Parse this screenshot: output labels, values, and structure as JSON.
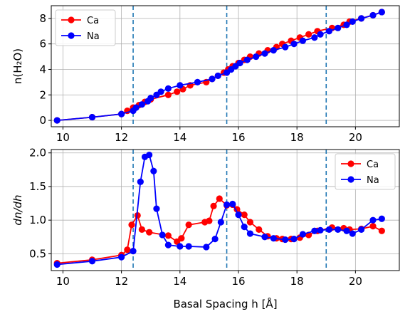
{
  "chart_data": [
    {
      "type": "line",
      "title": "",
      "xlabel": "",
      "ylabel": "n(H₂O)",
      "xlim": [
        9.6,
        21.5
      ],
      "ylim": [
        -0.5,
        9.0
      ],
      "xticks": [
        10,
        12,
        14,
        16,
        18,
        20
      ],
      "yticks": [
        0,
        2,
        4,
        6,
        8
      ],
      "grid": true,
      "legend_position": "top-left",
      "vlines": [
        12.4,
        15.6,
        19.0
      ],
      "series": [
        {
          "name": "Ca",
          "color": "#ff0000",
          "points": [
            [
              9.8,
              0.0
            ],
            [
              11.0,
              0.25
            ],
            [
              12.0,
              0.5
            ],
            [
              12.2,
              0.75
            ],
            [
              12.4,
              1.0
            ],
            [
              12.6,
              1.2
            ],
            [
              12.8,
              1.45
            ],
            [
              13.0,
              1.65
            ],
            [
              13.6,
              2.0
            ],
            [
              13.9,
              2.25
            ],
            [
              14.1,
              2.45
            ],
            [
              14.35,
              2.75
            ],
            [
              14.9,
              3.0
            ],
            [
              15.1,
              3.25
            ],
            [
              15.3,
              3.5
            ],
            [
              15.5,
              3.75
            ],
            [
              15.65,
              4.0
            ],
            [
              15.8,
              4.25
            ],
            [
              16.0,
              4.5
            ],
            [
              16.2,
              4.75
            ],
            [
              16.4,
              5.0
            ],
            [
              16.7,
              5.25
            ],
            [
              17.0,
              5.5
            ],
            [
              17.3,
              5.75
            ],
            [
              17.5,
              6.0
            ],
            [
              17.8,
              6.25
            ],
            [
              18.1,
              6.5
            ],
            [
              18.4,
              6.75
            ],
            [
              18.7,
              7.0
            ],
            [
              19.2,
              7.25
            ],
            [
              19.6,
              7.5
            ],
            [
              19.8,
              7.75
            ],
            [
              20.2,
              8.0
            ],
            [
              20.6,
              8.25
            ],
            [
              20.9,
              8.5
            ]
          ]
        },
        {
          "name": "Na",
          "color": "#0000ff",
          "points": [
            [
              9.8,
              0.0
            ],
            [
              11.0,
              0.25
            ],
            [
              12.0,
              0.5
            ],
            [
              12.4,
              0.75
            ],
            [
              12.5,
              1.0
            ],
            [
              12.7,
              1.25
            ],
            [
              12.9,
              1.5
            ],
            [
              13.0,
              1.75
            ],
            [
              13.2,
              2.0
            ],
            [
              13.35,
              2.25
            ],
            [
              13.6,
              2.5
            ],
            [
              14.0,
              2.75
            ],
            [
              14.6,
              3.0
            ],
            [
              15.1,
              3.25
            ],
            [
              15.3,
              3.5
            ],
            [
              15.6,
              3.75
            ],
            [
              15.75,
              4.0
            ],
            [
              15.9,
              4.25
            ],
            [
              16.05,
              4.5
            ],
            [
              16.3,
              4.75
            ],
            [
              16.6,
              5.0
            ],
            [
              16.9,
              5.25
            ],
            [
              17.2,
              5.5
            ],
            [
              17.6,
              5.75
            ],
            [
              17.9,
              6.0
            ],
            [
              18.2,
              6.25
            ],
            [
              18.6,
              6.5
            ],
            [
              18.8,
              6.75
            ],
            [
              19.1,
              7.0
            ],
            [
              19.4,
              7.25
            ],
            [
              19.7,
              7.5
            ],
            [
              19.9,
              7.75
            ],
            [
              20.2,
              8.0
            ],
            [
              20.6,
              8.25
            ],
            [
              20.9,
              8.5
            ]
          ]
        }
      ]
    },
    {
      "type": "line",
      "title": "",
      "xlabel": "Basal Spacing h [Å]",
      "ylabel": "dn/dh",
      "xlim": [
        9.6,
        21.5
      ],
      "ylim": [
        0.25,
        2.05
      ],
      "xticks": [
        10,
        12,
        14,
        16,
        18,
        20
      ],
      "yticks": [
        0.5,
        1.0,
        1.5,
        2.0
      ],
      "ytick_labels": [
        "0.5",
        "1.0",
        "1.5",
        "2.0"
      ],
      "grid": true,
      "legend_position": "top-right",
      "vlines": [
        12.4,
        15.6,
        19.0
      ],
      "series": [
        {
          "name": "Ca",
          "color": "#ff0000",
          "points": [
            [
              9.8,
              0.36
            ],
            [
              11.0,
              0.41
            ],
            [
              12.0,
              0.48
            ],
            [
              12.2,
              0.56
            ],
            [
              12.35,
              0.93
            ],
            [
              12.55,
              1.07
            ],
            [
              12.7,
              0.86
            ],
            [
              12.95,
              0.82
            ],
            [
              13.6,
              0.77
            ],
            [
              13.9,
              0.68
            ],
            [
              14.05,
              0.73
            ],
            [
              14.3,
              0.93
            ],
            [
              14.85,
              0.97
            ],
            [
              15.0,
              0.99
            ],
            [
              15.15,
              1.21
            ],
            [
              15.35,
              1.32
            ],
            [
              15.6,
              1.22
            ],
            [
              15.8,
              1.23
            ],
            [
              15.95,
              1.16
            ],
            [
              16.2,
              1.08
            ],
            [
              16.4,
              0.97
            ],
            [
              16.7,
              0.86
            ],
            [
              17.0,
              0.76
            ],
            [
              17.3,
              0.73
            ],
            [
              17.5,
              0.72
            ],
            [
              17.8,
              0.72
            ],
            [
              18.1,
              0.74
            ],
            [
              18.4,
              0.78
            ],
            [
              18.7,
              0.84
            ],
            [
              19.2,
              0.89
            ],
            [
              19.6,
              0.88
            ],
            [
              19.8,
              0.86
            ],
            [
              20.2,
              0.87
            ],
            [
              20.6,
              0.91
            ],
            [
              20.9,
              0.84
            ]
          ]
        },
        {
          "name": "Na",
          "color": "#0000ff",
          "points": [
            [
              9.8,
              0.34
            ],
            [
              11.0,
              0.39
            ],
            [
              12.0,
              0.45
            ],
            [
              12.4,
              0.54
            ],
            [
              12.65,
              1.57
            ],
            [
              12.8,
              1.94
            ],
            [
              12.95,
              1.97
            ],
            [
              13.1,
              1.73
            ],
            [
              13.2,
              1.17
            ],
            [
              13.4,
              0.78
            ],
            [
              13.6,
              0.63
            ],
            [
              14.0,
              0.61
            ],
            [
              14.3,
              0.61
            ],
            [
              14.9,
              0.6
            ],
            [
              15.2,
              0.72
            ],
            [
              15.4,
              0.97
            ],
            [
              15.6,
              1.23
            ],
            [
              15.8,
              1.24
            ],
            [
              16.0,
              1.08
            ],
            [
              16.2,
              0.9
            ],
            [
              16.4,
              0.8
            ],
            [
              16.9,
              0.75
            ],
            [
              17.2,
              0.73
            ],
            [
              17.6,
              0.71
            ],
            [
              17.9,
              0.72
            ],
            [
              18.2,
              0.79
            ],
            [
              18.6,
              0.84
            ],
            [
              18.8,
              0.85
            ],
            [
              19.1,
              0.86
            ],
            [
              19.4,
              0.86
            ],
            [
              19.7,
              0.84
            ],
            [
              19.9,
              0.8
            ],
            [
              20.2,
              0.86
            ],
            [
              20.6,
              1.0
            ],
            [
              20.9,
              1.02
            ]
          ]
        }
      ]
    }
  ]
}
